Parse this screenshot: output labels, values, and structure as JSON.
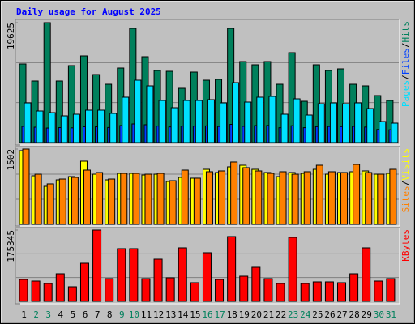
{
  "chart_data": [
    {
      "type": "bar",
      "title": "Daily usage for August 2025",
      "ylim": [
        0,
        19625
      ],
      "yticks": [
        19625
      ],
      "grid_divisions": 3,
      "legend_separator": "/",
      "series": [
        {
          "name": "Hits",
          "color": "#00805c",
          "values": [
            12862,
            10078,
            19625,
            10078,
            12597,
            14188,
            11138,
            9547,
            12199,
            18696,
            14055,
            11801,
            11669,
            8884,
            11536,
            10210,
            10343,
            18696,
            13260,
            12730,
            13260,
            9547,
            14719,
            6763,
            12730,
            11801,
            12066,
            9547,
            9282,
            7691,
            6895
          ]
        },
        {
          "name": "Files",
          "color": "#0040ff",
          "values": [
            2650,
            2520,
            2380,
            2450,
            2410,
            2600,
            2580,
            2470,
            2790,
            3050,
            2920,
            2700,
            2560,
            2700,
            2690,
            2730,
            2640,
            2980,
            2660,
            2780,
            2800,
            2430,
            2760,
            2440,
            2610,
            2640,
            2620,
            2650,
            2540,
            2150,
            2100
          ]
        },
        {
          "name": "Pages",
          "color": "#00e0ff",
          "values": [
            6497,
            5171,
            4906,
            4376,
            4641,
            5304,
            5304,
            4774,
            7426,
            10210,
            9282,
            6895,
            5702,
            6895,
            6895,
            7028,
            6497,
            9813,
            6630,
            7426,
            7558,
            4641,
            7160,
            4508,
            6365,
            6497,
            6365,
            6497,
            5569,
            3448,
            3182
          ]
        }
      ]
    },
    {
      "type": "bar",
      "ylim": [
        0,
        1502
      ],
      "yticks": [
        1502
      ],
      "grid_divisions": 3,
      "legend_separator": "/",
      "series": [
        {
          "name": "Visits",
          "color": "#ffff00",
          "values": [
            1470,
            969,
            759,
            888,
            953,
            1260,
            1001,
            888,
            1017,
            1017,
            985,
            1001,
            856,
            937,
            921,
            1098,
            1034,
            1147,
            1179,
            1098,
            1034,
            953,
            1034,
            1017,
            1098,
            1001,
            1034,
            1050,
            1066,
            1001,
            1017
          ]
        },
        {
          "name": "Sites",
          "color": "#ff8000",
          "values": [
            1502,
            1001,
            808,
            904,
            937,
            1082,
            1034,
            904,
            1017,
            1017,
            1001,
            1017,
            872,
            1082,
            921,
            1050,
            1066,
            1244,
            1131,
            1066,
            1017,
            1050,
            1001,
            1050,
            1179,
            1050,
            1034,
            1195,
            1034,
            1001,
            1098
          ]
        }
      ]
    },
    {
      "type": "bar",
      "ylim": [
        0,
        175345
      ],
      "yticks": [
        175345
      ],
      "grid_divisions": 3,
      "series": [
        {
          "name": "KBytes",
          "color": "#ff0000",
          "values": [
            53811,
            49825,
            43846,
            67762,
            35874,
            93671,
            175345,
            55804,
            129545,
            129545,
            55804,
            103636,
            57797,
            131538,
            45839,
            119580,
            53811,
            159440,
            61783,
            83706,
            55804,
            43846,
            157447,
            43846,
            47832,
            47832,
            45839,
            67762,
            131538,
            49825,
            55804
          ]
        }
      ],
      "categories": [
        "1",
        "2",
        "3",
        "4",
        "5",
        "6",
        "7",
        "8",
        "9",
        "10",
        "11",
        "12",
        "13",
        "14",
        "15",
        "16",
        "17",
        "18",
        "19",
        "20",
        "21",
        "22",
        "23",
        "24",
        "25",
        "26",
        "27",
        "28",
        "29",
        "30",
        "31"
      ],
      "category_colors": [
        "#000000",
        "#00805c",
        "#00805c",
        "#000000",
        "#000000",
        "#000000",
        "#000000",
        "#000000",
        "#00805c",
        "#00805c",
        "#000000",
        "#000000",
        "#000000",
        "#000000",
        "#000000",
        "#00805c",
        "#00805c",
        "#000000",
        "#000000",
        "#000000",
        "#000000",
        "#000000",
        "#00805c",
        "#00805c",
        "#000000",
        "#000000",
        "#000000",
        "#000000",
        "#000000",
        "#00805c",
        "#00805c"
      ]
    }
  ]
}
